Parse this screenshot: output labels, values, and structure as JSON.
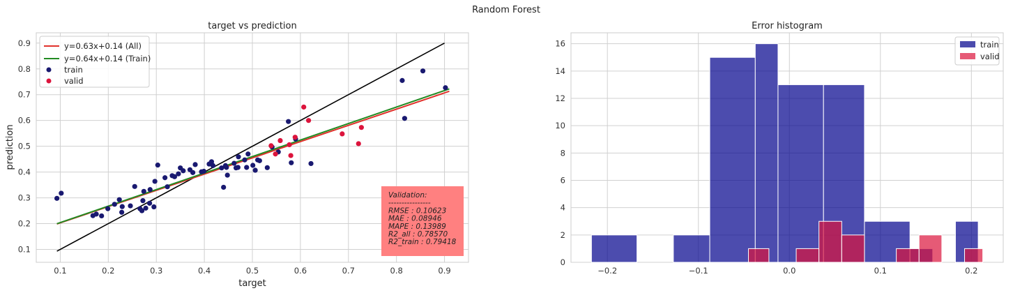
{
  "figure_title": "Random Forest",
  "colors": {
    "train": "#191970",
    "valid": "#dc143c",
    "line_all": "#e0312b",
    "line_train": "#228b22",
    "identity": "#000000",
    "hist_train": "#00008b",
    "hist_valid": "#dc143c",
    "val_box": "#ff8080"
  },
  "chart_data": [
    {
      "type": "scatter",
      "title": "target vs prediction",
      "xlabel": "target",
      "ylabel": "prediction",
      "xlim": [
        0.05,
        0.95
      ],
      "ylim": [
        0.05,
        0.94
      ],
      "xticks": [
        "0.1",
        "0.2",
        "0.3",
        "0.4",
        "0.5",
        "0.6",
        "0.7",
        "0.8",
        "0.9"
      ],
      "yticks": [
        "0.1",
        "0.2",
        "0.3",
        "0.4",
        "0.5",
        "0.6",
        "0.7",
        "0.8",
        "0.9"
      ],
      "grid": true,
      "legend_position": "top-left",
      "legend": [
        {
          "key": "all",
          "label": "y=0.63x+0.14 (All)"
        },
        {
          "key": "train_line",
          "label": "y=0.64x+0.14 (Train)"
        },
        {
          "key": "train",
          "label": "train"
        },
        {
          "key": "valid",
          "label": "valid"
        }
      ],
      "lines": {
        "identity": {
          "x": [
            0.093,
            0.9
          ],
          "y": [
            0.093,
            0.9
          ]
        },
        "all": {
          "slope": 0.63,
          "intercept": 0.14,
          "x": [
            0.093,
            0.91
          ]
        },
        "train": {
          "slope": 0.64,
          "intercept": 0.14,
          "x": [
            0.093,
            0.91
          ]
        }
      },
      "series": [
        {
          "name": "train",
          "points": [
            [
              0.093,
              0.298
            ],
            [
              0.102,
              0.318
            ],
            [
              0.168,
              0.231
            ],
            [
              0.175,
              0.237
            ],
            [
              0.186,
              0.23
            ],
            [
              0.199,
              0.258
            ],
            [
              0.213,
              0.275
            ],
            [
              0.223,
              0.293
            ],
            [
              0.228,
              0.244
            ],
            [
              0.229,
              0.266
            ],
            [
              0.246,
              0.269
            ],
            [
              0.255,
              0.344
            ],
            [
              0.266,
              0.258
            ],
            [
              0.27,
              0.25
            ],
            [
              0.272,
              0.289
            ],
            [
              0.274,
              0.325
            ],
            [
              0.278,
              0.26
            ],
            [
              0.287,
              0.332
            ],
            [
              0.286,
              0.279
            ],
            [
              0.295,
              0.265
            ],
            [
              0.297,
              0.364
            ],
            [
              0.303,
              0.427
            ],
            [
              0.318,
              0.378
            ],
            [
              0.323,
              0.343
            ],
            [
              0.333,
              0.386
            ],
            [
              0.338,
              0.382
            ],
            [
              0.346,
              0.393
            ],
            [
              0.35,
              0.416
            ],
            [
              0.356,
              0.405
            ],
            [
              0.37,
              0.409
            ],
            [
              0.376,
              0.398
            ],
            [
              0.381,
              0.429
            ],
            [
              0.394,
              0.401
            ],
            [
              0.399,
              0.403
            ],
            [
              0.41,
              0.431
            ],
            [
              0.415,
              0.44
            ],
            [
              0.418,
              0.425
            ],
            [
              0.436,
              0.416
            ],
            [
              0.44,
              0.341
            ],
            [
              0.444,
              0.425
            ],
            [
              0.446,
              0.418
            ],
            [
              0.448,
              0.388
            ],
            [
              0.462,
              0.434
            ],
            [
              0.466,
              0.416
            ],
            [
              0.47,
              0.418
            ],
            [
              0.471,
              0.459
            ],
            [
              0.484,
              0.447
            ],
            [
              0.488,
              0.418
            ],
            [
              0.491,
              0.47
            ],
            [
              0.501,
              0.426
            ],
            [
              0.506,
              0.407
            ],
            [
              0.511,
              0.447
            ],
            [
              0.515,
              0.444
            ],
            [
              0.531,
              0.417
            ],
            [
              0.541,
              0.497
            ],
            [
              0.554,
              0.478
            ],
            [
              0.575,
              0.596
            ],
            [
              0.581,
              0.436
            ],
            [
              0.59,
              0.528
            ],
            [
              0.622,
              0.433
            ],
            [
              0.812,
              0.755
            ],
            [
              0.817,
              0.608
            ],
            [
              0.855,
              0.792
            ],
            [
              0.902,
              0.727
            ]
          ]
        },
        {
          "name": "valid",
          "points": [
            [
              0.539,
              0.502
            ],
            [
              0.548,
              0.47
            ],
            [
              0.558,
              0.522
            ],
            [
              0.577,
              0.506
            ],
            [
              0.58,
              0.464
            ],
            [
              0.589,
              0.535
            ],
            [
              0.607,
              0.652
            ],
            [
              0.617,
              0.6
            ],
            [
              0.687,
              0.548
            ],
            [
              0.721,
              0.51
            ],
            [
              0.727,
              0.573
            ]
          ]
        }
      ]
    },
    {
      "type": "bar",
      "title": "Error histogram",
      "xlim": [
        -0.24,
        0.235
      ],
      "ylim": [
        0,
        16.8
      ],
      "xticks": [
        {
          "value": -0.2,
          "label": "−0.2"
        },
        {
          "value": -0.1,
          "label": "−0.1"
        },
        {
          "value": 0.0,
          "label": "0.0"
        },
        {
          "value": 0.1,
          "label": "0.1"
        },
        {
          "value": 0.2,
          "label": "0.2"
        }
      ],
      "yticks": [
        "0",
        "2",
        "4",
        "6",
        "8",
        "10",
        "12",
        "14",
        "16"
      ],
      "grid": true,
      "legend_position": "top-right",
      "series": [
        {
          "name": "train",
          "bins": [
            [
              -0.2175,
              -0.1675,
              2
            ],
            [
              -0.1675,
              -0.1275,
              0
            ],
            [
              -0.1275,
              -0.0875,
              2
            ],
            [
              -0.0875,
              -0.0375,
              15
            ],
            [
              -0.0375,
              -0.0125,
              16
            ],
            [
              -0.0125,
              0.0375,
              13
            ],
            [
              0.0375,
              0.0825,
              13
            ],
            [
              0.0825,
              0.1325,
              3
            ],
            [
              0.1325,
              0.1575,
              1
            ],
            [
              0.1575,
              0.1825,
              0
            ],
            [
              0.1825,
              0.2075,
              3
            ]
          ]
        },
        {
          "name": "valid",
          "bins": [
            [
              -0.045,
              -0.0225,
              1
            ],
            [
              0.0075,
              0.0325,
              1
            ],
            [
              0.0325,
              0.0575,
              3
            ],
            [
              0.0575,
              0.0825,
              2
            ],
            [
              0.1175,
              0.1425,
              1
            ],
            [
              0.1425,
              0.1675,
              2
            ],
            [
              0.1675,
              0.1925,
              0
            ],
            [
              0.1925,
              0.2125,
              1
            ]
          ]
        }
      ]
    }
  ],
  "validation_box": {
    "lines": [
      "Validation:",
      "----------------",
      "RMSE        : 0.10623",
      "MAE          : 0.08946",
      "MAPE        : 0.13989",
      "R2_all       : 0.78570",
      "R2_train   : 0.79418"
    ]
  }
}
